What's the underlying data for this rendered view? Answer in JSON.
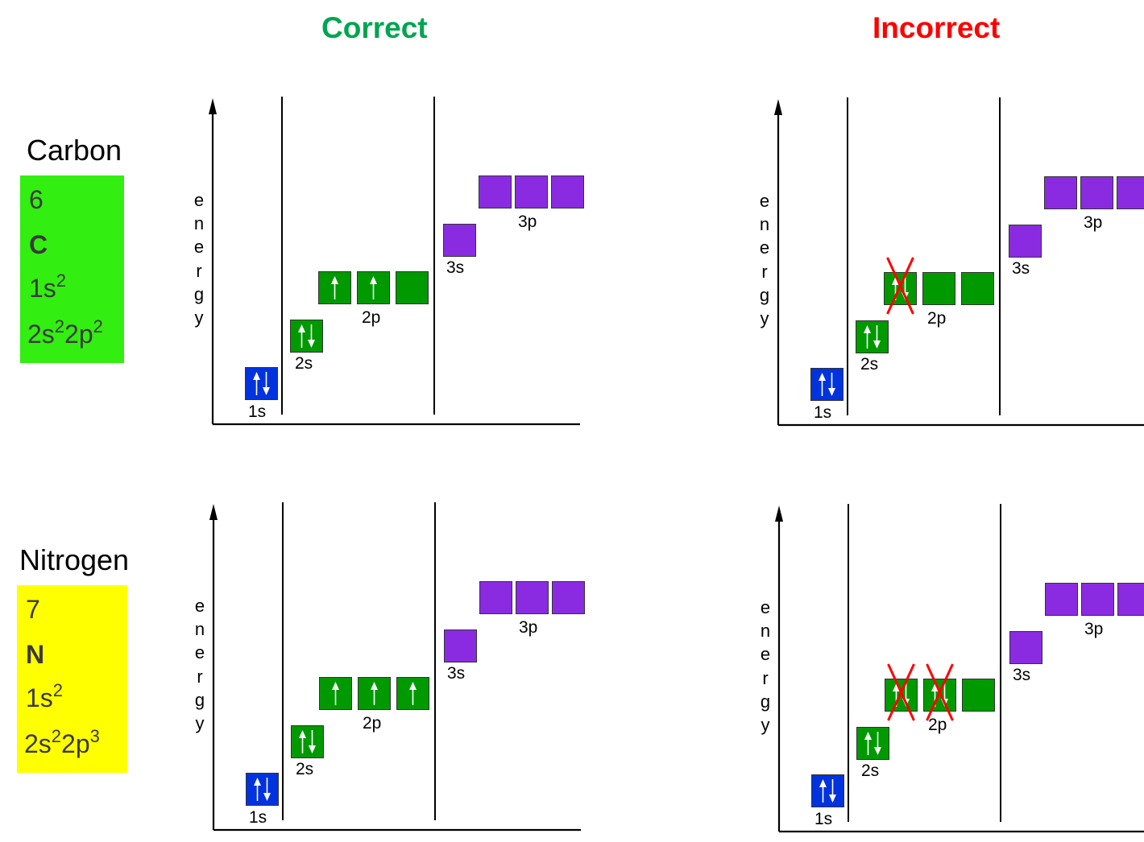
{
  "headers": {
    "correct": "Correct",
    "incorrect": "Incorrect"
  },
  "colors": {
    "correct": "#00a550",
    "incorrect": "#ff0000",
    "s1": "#0033dd",
    "n2": "#009900",
    "n3": "#8a2be2",
    "carbon_card": "#33ee11",
    "nitrogen_card": "#ffff00"
  },
  "axis_label": "energy",
  "sublevel_labels": {
    "s1": "1s",
    "s2": "2s",
    "p2": "2p",
    "s3": "3s",
    "p3": "3p"
  },
  "elements": [
    {
      "name": "Carbon",
      "number": "6",
      "symbol": "C",
      "config1_base": "1s",
      "config1_sup": "2",
      "config2_a": "2s",
      "config2_a_sup": "2",
      "config2_b": "2p",
      "config2_b_sup": "2"
    },
    {
      "name": "Nitrogen",
      "number": "7",
      "symbol": "N",
      "config1_base": "1s",
      "config1_sup": "2",
      "config2_a": "2s",
      "config2_a_sup": "2",
      "config2_b": "2p",
      "config2_b_sup": "3"
    }
  ],
  "diagrams": [
    {
      "id": "carbon-correct",
      "s1": "pair",
      "s2": "pair",
      "p2": [
        "up",
        "up",
        "empty"
      ],
      "crossed_p2": []
    },
    {
      "id": "carbon-incorrect",
      "s1": "pair",
      "s2": "pair",
      "p2": [
        "pair",
        "empty",
        "empty"
      ],
      "crossed_p2": [
        0
      ]
    },
    {
      "id": "nitrogen-correct",
      "s1": "pair",
      "s2": "pair",
      "p2": [
        "up",
        "up",
        "up"
      ],
      "crossed_p2": []
    },
    {
      "id": "nitrogen-incorrect",
      "s1": "pair",
      "s2": "pair",
      "p2": [
        "pair",
        "pair",
        "empty"
      ],
      "crossed_p2": [
        0,
        1
      ]
    }
  ]
}
